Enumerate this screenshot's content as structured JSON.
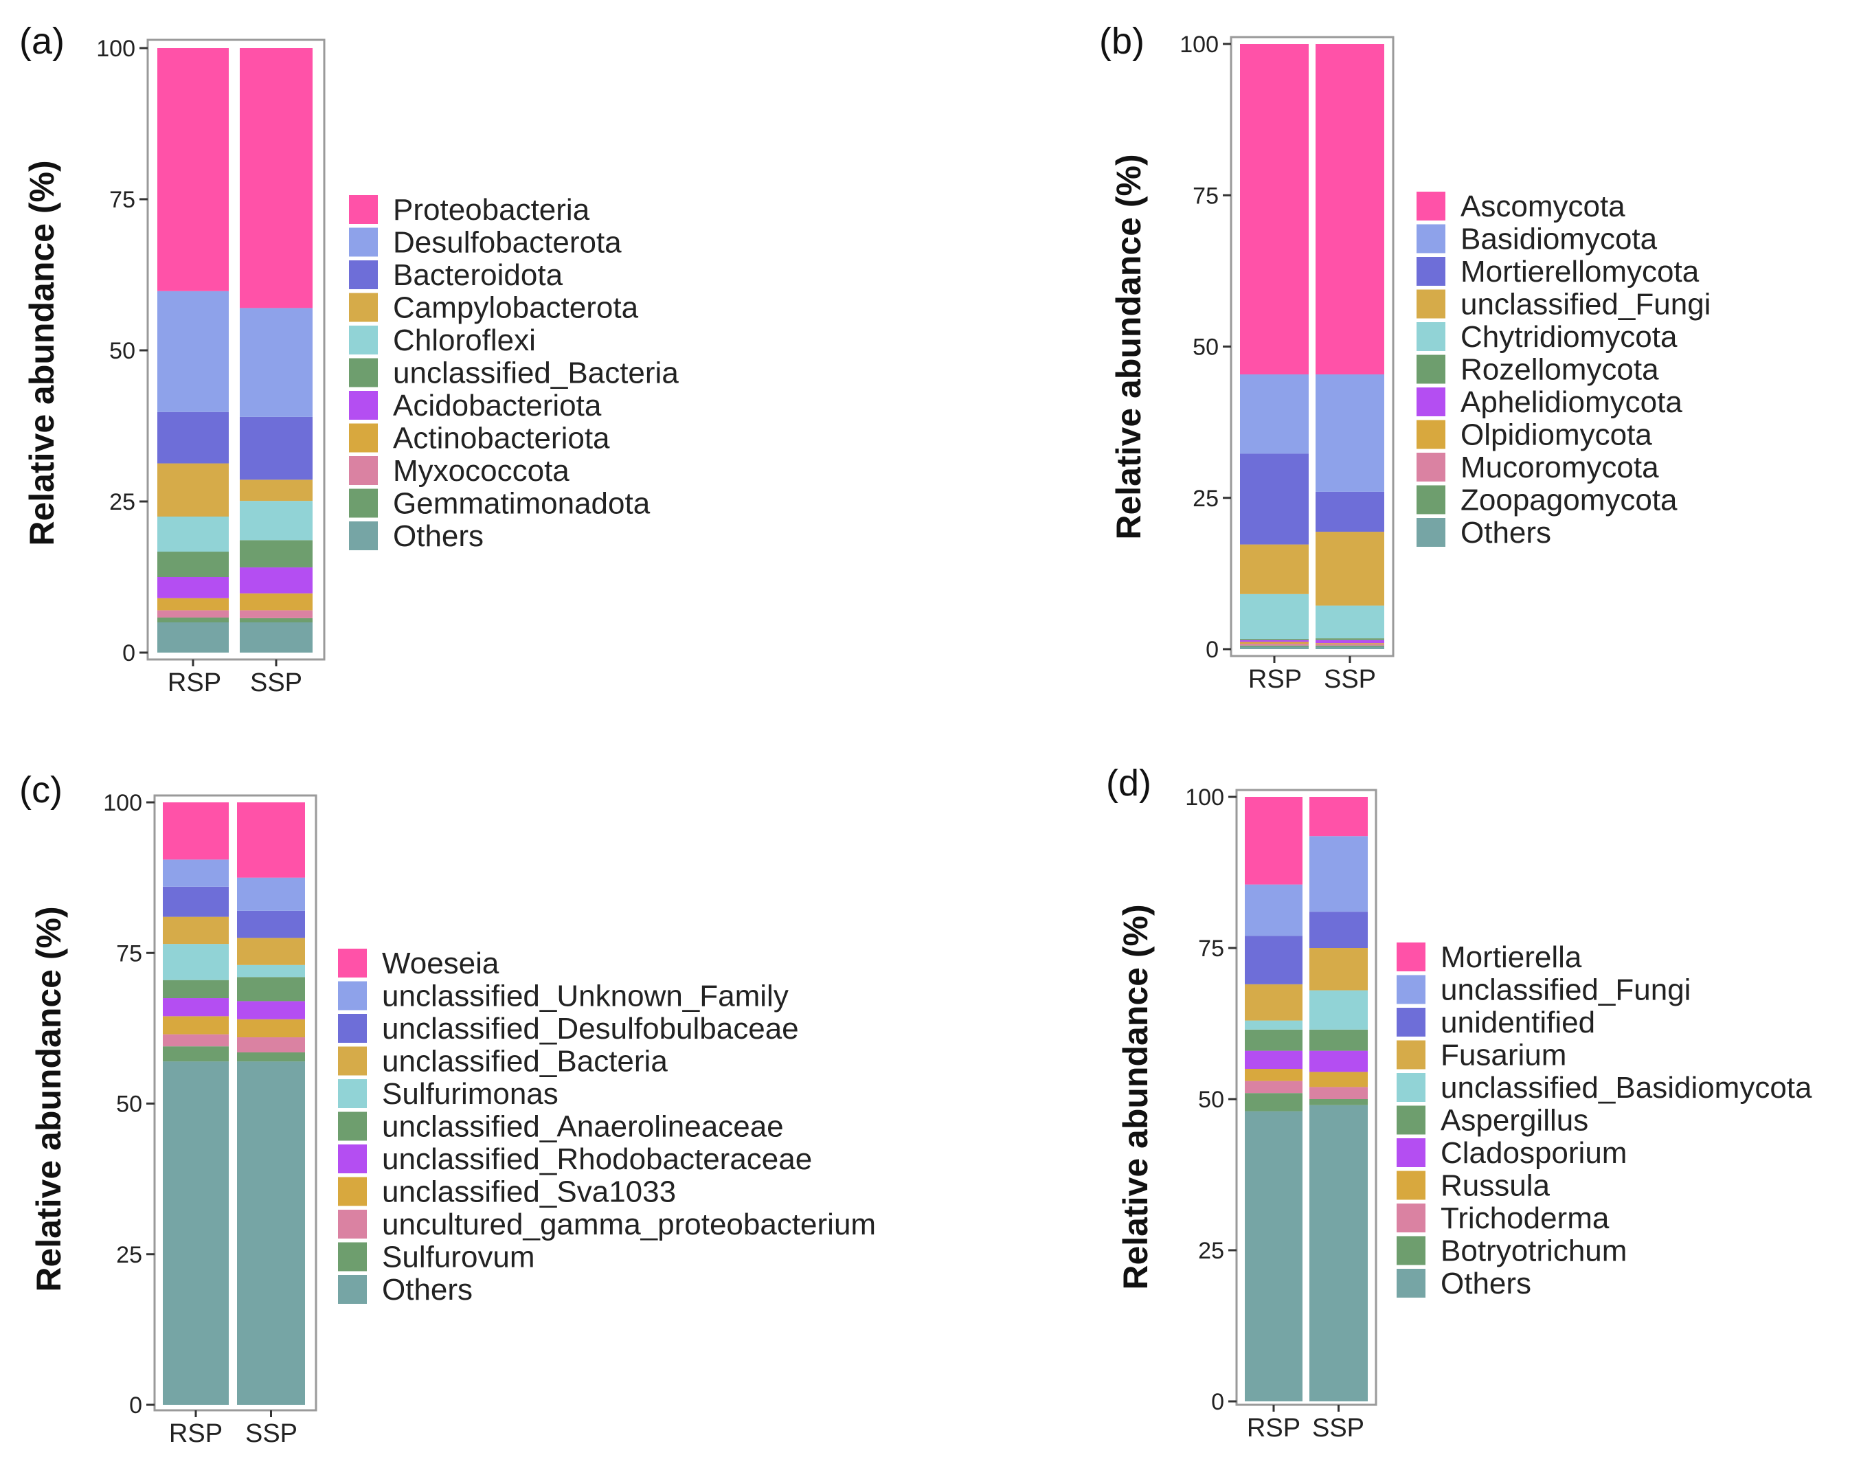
{
  "chart_data": [
    {
      "panel": "(a)",
      "type": "bar",
      "stacked": true,
      "ylabel": "Relative abundance (%)",
      "xlabel": "",
      "ylim": [
        0,
        100
      ],
      "yticks": [
        "0",
        "25",
        "50",
        "75",
        "100"
      ],
      "categories": [
        "RSP",
        "SSP"
      ],
      "series": [
        {
          "name": "Others",
          "color": "#76A5A5",
          "values": [
            5.0,
            5.0
          ]
        },
        {
          "name": "Gemmatimonadota",
          "color": "#6E9E6E",
          "values": [
            0.8,
            0.7
          ]
        },
        {
          "name": "Myxococcota",
          "color": "#DA82A2",
          "values": [
            1.2,
            1.3
          ]
        },
        {
          "name": "Actinobacteriota",
          "color": "#D8A83E",
          "values": [
            2.0,
            2.8
          ]
        },
        {
          "name": "Acidobacteriota",
          "color": "#B44EF2",
          "values": [
            3.5,
            4.3
          ]
        },
        {
          "name": "unclassified_Bacteria",
          "color": "#6E9E6E",
          "values": [
            4.2,
            4.5
          ]
        },
        {
          "name": "Chloroflexi",
          "color": "#91D3D6",
          "values": [
            5.8,
            6.5
          ]
        },
        {
          "name": "Campylobacterota",
          "color": "#D6AB49",
          "values": [
            8.8,
            3.5
          ]
        },
        {
          "name": "Bacteroidota",
          "color": "#6E6ED8",
          "values": [
            8.5,
            10.4
          ]
        },
        {
          "name": "Desulfobacterota",
          "color": "#8EA2EA",
          "values": [
            20.0,
            18.0
          ]
        },
        {
          "name": "Proteobacteria",
          "color": "#FF52A8",
          "values": [
            40.2,
            43.0
          ]
        }
      ],
      "legend": [
        "Proteobacteria",
        "Desulfobacterota",
        "Bacteroidota",
        "Campylobacterota",
        "Chloroflexi",
        "unclassified_Bacteria",
        "Acidobacteriota",
        "Actinobacteriota",
        "Myxococcota",
        "Gemmatimonadota",
        "Others"
      ]
    },
    {
      "panel": "(b)",
      "type": "bar",
      "stacked": true,
      "ylabel": "Relative abundance (%)",
      "xlabel": "",
      "ylim": [
        0,
        100
      ],
      "yticks": [
        "0",
        "25",
        "50",
        "75",
        "100"
      ],
      "categories": [
        "RSP",
        "SSP"
      ],
      "series": [
        {
          "name": "Others",
          "color": "#76A5A5",
          "values": [
            0.4,
            0.4
          ]
        },
        {
          "name": "Zoopagomycota",
          "color": "#6E9E6E",
          "values": [
            0.2,
            0.2
          ]
        },
        {
          "name": "Mucoromycota",
          "color": "#DA82A2",
          "values": [
            0.3,
            0.2
          ]
        },
        {
          "name": "Olpidiomycota",
          "color": "#D8A83E",
          "values": [
            0.3,
            0.2
          ]
        },
        {
          "name": "Aphelidiomycota",
          "color": "#B44EF2",
          "values": [
            0.3,
            0.5
          ]
        },
        {
          "name": "Rozellomycota",
          "color": "#6E9E6E",
          "values": [
            0.2,
            0.3
          ]
        },
        {
          "name": "Chytridiomycota",
          "color": "#91D3D6",
          "values": [
            7.4,
            5.4
          ]
        },
        {
          "name": "unclassified_Fungi",
          "color": "#D6AB49",
          "values": [
            8.2,
            12.2
          ]
        },
        {
          "name": "Mortierellomycota",
          "color": "#6E6ED8",
          "values": [
            15.0,
            6.6
          ]
        },
        {
          "name": "Basidiomycota",
          "color": "#8EA2EA",
          "values": [
            13.1,
            19.4
          ]
        },
        {
          "name": "Ascomycota",
          "color": "#FF52A8",
          "values": [
            54.6,
            54.6
          ]
        }
      ],
      "legend": [
        "Ascomycota",
        "Basidiomycota",
        "Mortierellomycota",
        "unclassified_Fungi",
        "Chytridiomycota",
        "Rozellomycota",
        "Aphelidiomycota",
        "Olpidiomycota",
        "Mucoromycota",
        "Zoopagomycota",
        "Others"
      ]
    },
    {
      "panel": "(c)",
      "type": "bar",
      "stacked": true,
      "ylabel": "Relative abundance (%)",
      "xlabel": "",
      "ylim": [
        0,
        100
      ],
      "yticks": [
        "0",
        "25",
        "50",
        "75",
        "100"
      ],
      "categories": [
        "RSP",
        "SSP"
      ],
      "series": [
        {
          "name": "Others",
          "color": "#76A5A5",
          "values": [
            57.0,
            57.0
          ]
        },
        {
          "name": "Sulfurovum",
          "color": "#6E9E6E",
          "values": [
            2.5,
            1.5
          ]
        },
        {
          "name": "uncultured_gamma_proteobacterium",
          "color": "#DA82A2",
          "values": [
            2.0,
            2.5
          ]
        },
        {
          "name": "unclassified_Sva1033",
          "color": "#D8A83E",
          "values": [
            3.0,
            3.0
          ]
        },
        {
          "name": "unclassified_Rhodobacteraceae",
          "color": "#B44EF2",
          "values": [
            3.0,
            3.0
          ]
        },
        {
          "name": "unclassified_Anaerolineaceae",
          "color": "#6E9E6E",
          "values": [
            3.0,
            4.0
          ]
        },
        {
          "name": "Sulfurimonas",
          "color": "#91D3D6",
          "values": [
            6.0,
            2.0
          ]
        },
        {
          "name": "unclassified_Bacteria",
          "color": "#D6AB49",
          "values": [
            4.5,
            4.5
          ]
        },
        {
          "name": "unclassified_Desulfobulbaceae",
          "color": "#6E6ED8",
          "values": [
            5.0,
            4.5
          ]
        },
        {
          "name": "unclassified_Unknown_Family",
          "color": "#8EA2EA",
          "values": [
            4.5,
            5.5
          ]
        },
        {
          "name": "Woeseia",
          "color": "#FF52A8",
          "values": [
            9.5,
            12.5
          ]
        }
      ],
      "legend": [
        "Woeseia",
        "unclassified_Unknown_Family",
        "unclassified_Desulfobulbaceae",
        "unclassified_Bacteria",
        "Sulfurimonas",
        "unclassified_Anaerolineaceae",
        "unclassified_Rhodobacteraceae",
        "unclassified_Sva1033",
        "uncultured_gamma_proteobacterium",
        "Sulfurovum",
        "Others"
      ]
    },
    {
      "panel": "(d)",
      "type": "bar",
      "stacked": true,
      "ylabel": "Relative abundance (%)",
      "xlabel": "",
      "ylim": [
        0,
        100
      ],
      "yticks": [
        "0",
        "25",
        "50",
        "75",
        "100"
      ],
      "categories": [
        "RSP",
        "SSP"
      ],
      "series": [
        {
          "name": "Others",
          "color": "#76A5A5",
          "values": [
            48.0,
            49.0
          ]
        },
        {
          "name": "Botryotrichum",
          "color": "#6E9E6E",
          "values": [
            3.0,
            1.0
          ]
        },
        {
          "name": "Trichoderma",
          "color": "#DA82A2",
          "values": [
            2.0,
            2.0
          ]
        },
        {
          "name": "Russula",
          "color": "#D8A83E",
          "values": [
            2.0,
            2.5
          ]
        },
        {
          "name": "Cladosporium",
          "color": "#B44EF2",
          "values": [
            3.0,
            3.5
          ]
        },
        {
          "name": "Aspergillus",
          "color": "#6E9E6E",
          "values": [
            3.5,
            3.5
          ]
        },
        {
          "name": "unclassified_Basidiomycota",
          "color": "#91D3D6",
          "values": [
            1.5,
            6.5
          ]
        },
        {
          "name": "Fusarium",
          "color": "#D6AB49",
          "values": [
            6.0,
            7.0
          ]
        },
        {
          "name": "unidentified",
          "color": "#6E6ED8",
          "values": [
            8.0,
            6.0
          ]
        },
        {
          "name": "unclassified_Fungi",
          "color": "#8EA2EA",
          "values": [
            8.5,
            12.5
          ]
        },
        {
          "name": "Mortierella",
          "color": "#FF52A8",
          "values": [
            14.5,
            6.5
          ]
        }
      ],
      "legend": [
        "Mortierella",
        "unclassified_Fungi",
        "unidentified",
        "Fusarium",
        "unclassified_Basidiomycota",
        "Aspergillus",
        "Cladosporium",
        "Russula",
        "Trichoderma",
        "Botryotrichum",
        "Others"
      ]
    }
  ]
}
